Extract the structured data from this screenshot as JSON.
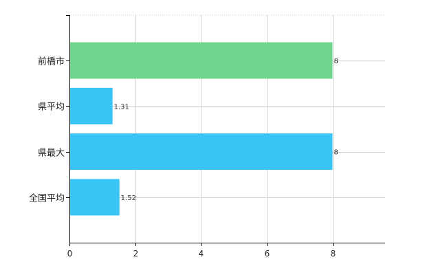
{
  "chart_data": {
    "type": "bar",
    "orientation": "horizontal",
    "categories": [
      "前橋市",
      "県平均",
      "県最大",
      "全国平均"
    ],
    "values": [
      8,
      1.31,
      8,
      1.52
    ],
    "data_labels": [
      "8",
      "1.31",
      "8",
      "1.52"
    ],
    "bar_colors": [
      "#6dd58c",
      "#38c5f6",
      "#38c5f6",
      "#38c5f6"
    ],
    "xlim": [
      0,
      9.6
    ],
    "xticks": [
      0,
      2,
      4,
      6,
      8
    ],
    "xtick_labels": [
      "0",
      "2",
      "4",
      "6",
      "8"
    ],
    "grid": true,
    "legend": "none"
  }
}
